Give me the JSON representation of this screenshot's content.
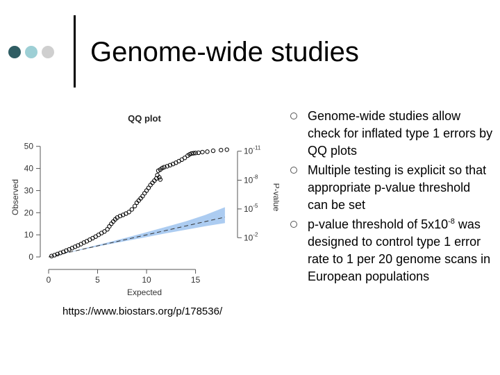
{
  "slide": {
    "title": "Genome-wide studies",
    "dot_colors": [
      "#2f5d63",
      "#9dcfd5",
      "#cfcfcf"
    ],
    "credit": "https://www.biostars.org/p/178536/"
  },
  "bullets": [
    {
      "text": "Genome-wide studies allow check for inflated type 1 errors by QQ plots"
    },
    {
      "text": "Multiple testing is explicit so that appropriate p-value threshold can be set"
    },
    {
      "text_pre": "p-value threshold of 5x10",
      "sup": "-8",
      "text_post": " was designed to control type 1 error rate to 1 per 20 genome scans in European populations"
    }
  ],
  "chart_data": {
    "type": "scatter",
    "title": "QQ plot",
    "xlabel": "Expected",
    "ylabel": "Observed",
    "y2label": "P-value",
    "xlim": [
      0,
      19
    ],
    "ylim": [
      0,
      54
    ],
    "xticks": [
      "0",
      "5",
      "10",
      "15"
    ],
    "xtick_values": [
      0,
      5,
      10,
      15
    ],
    "yticks": [
      "0",
      "10",
      "20",
      "30",
      "40",
      "50"
    ],
    "ytick_values": [
      0,
      10,
      20,
      30,
      40,
      50
    ],
    "y2ticks": [
      {
        "base": "10",
        "exp": "-11",
        "value": 47.8
      },
      {
        "base": "10",
        "exp": "-8",
        "value": 34.7
      },
      {
        "base": "10",
        "exp": "-5",
        "value": 21.7
      },
      {
        "base": "10",
        "exp": "-2",
        "value": 8.7
      }
    ],
    "grid": false,
    "reference_line": {
      "x": [
        0,
        18
      ],
      "y": [
        0,
        18
      ]
    },
    "confidence_band": {
      "x": [
        0,
        2,
        4,
        6,
        8,
        10,
        12,
        14,
        16,
        18
      ],
      "lower": [
        0,
        1.9,
        3.8,
        5.6,
        7.3,
        9.0,
        10.7,
        12.3,
        13.9,
        15.3
      ],
      "upper": [
        0,
        2.1,
        4.3,
        6.5,
        8.8,
        11.2,
        13.6,
        16.1,
        19.0,
        22.5
      ]
    },
    "band_color": "#9dc3ee",
    "point_color": "#000000",
    "points": [
      [
        0.3,
        0.4
      ],
      [
        0.6,
        0.8
      ],
      [
        0.9,
        1.3
      ],
      [
        1.2,
        1.8
      ],
      [
        1.5,
        2.3
      ],
      [
        1.8,
        2.9
      ],
      [
        2.1,
        3.4
      ],
      [
        2.4,
        4.0
      ],
      [
        2.7,
        4.6
      ],
      [
        3.0,
        5.2
      ],
      [
        3.3,
        5.8
      ],
      [
        3.6,
        6.5
      ],
      [
        3.9,
        7.1
      ],
      [
        4.2,
        7.8
      ],
      [
        4.5,
        8.5
      ],
      [
        4.8,
        9.2
      ],
      [
        5.1,
        10.0
      ],
      [
        5.4,
        10.8
      ],
      [
        5.7,
        11.5
      ],
      [
        6.0,
        12.5
      ],
      [
        6.2,
        13.8
      ],
      [
        6.4,
        15.0
      ],
      [
        6.6,
        16.0
      ],
      [
        6.8,
        17.0
      ],
      [
        7.0,
        17.8
      ],
      [
        7.3,
        18.5
      ],
      [
        7.6,
        19.0
      ],
      [
        7.9,
        19.6
      ],
      [
        8.2,
        20.3
      ],
      [
        8.5,
        21.5
      ],
      [
        8.8,
        23.0
      ],
      [
        9.0,
        24.5
      ],
      [
        9.2,
        25.5
      ],
      [
        9.4,
        26.5
      ],
      [
        9.6,
        27.5
      ],
      [
        9.8,
        28.8
      ],
      [
        10.0,
        30.0
      ],
      [
        10.2,
        31.2
      ],
      [
        10.4,
        32.5
      ],
      [
        10.6,
        33.5
      ],
      [
        10.8,
        34.5
      ],
      [
        11.0,
        35.5
      ],
      [
        11.1,
        37.0
      ],
      [
        11.2,
        39.0
      ],
      [
        11.4,
        39.5
      ],
      [
        11.6,
        40.2
      ],
      [
        11.8,
        40.6
      ],
      [
        12.1,
        41.0
      ],
      [
        12.4,
        41.5
      ],
      [
        12.7,
        42.0
      ],
      [
        13.0,
        42.6
      ],
      [
        13.3,
        43.3
      ],
      [
        13.6,
        44.0
      ],
      [
        13.9,
        44.8
      ],
      [
        14.2,
        45.8
      ],
      [
        14.4,
        46.4
      ],
      [
        14.6,
        46.8
      ],
      [
        14.8,
        46.9
      ],
      [
        15.0,
        47.0
      ],
      [
        15.3,
        47.1
      ],
      [
        15.7,
        47.4
      ],
      [
        16.2,
        47.6
      ],
      [
        16.8,
        48.0
      ],
      [
        17.6,
        48.3
      ],
      [
        18.2,
        48.5
      ],
      [
        11.3,
        36.0
      ],
      [
        11.4,
        35.0
      ]
    ]
  }
}
